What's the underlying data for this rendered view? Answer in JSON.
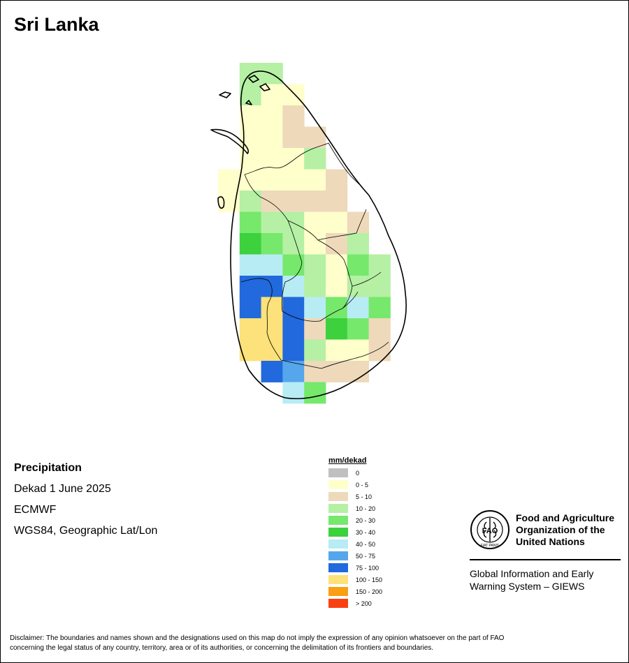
{
  "map": {
    "title": "Sri Lanka",
    "colors": {
      "0": "#c0c0c0",
      "0-5": "#ffffcc",
      "5-10": "#eed9bb",
      "10-20": "#b5f0a4",
      "20-30": "#76e86c",
      "30-40": "#3cd13d",
      "40-50": "#b8ecf4",
      "50-75": "#56a6ec",
      "75-100": "#2169dc",
      "100-150": "#fde17a",
      "150-200": "#f99f11",
      ">200": "#f94010"
    },
    "grid": {
      "columns": [
        "c0",
        "c1",
        "c2",
        "c3",
        "c4",
        "c5",
        "c6",
        "c7"
      ],
      "rows": [
        {
          "cells": [
            "",
            "10-20",
            "10-20",
            "",
            "",
            "",
            "",
            ""
          ]
        },
        {
          "cells": [
            "",
            "10-20",
            "0-5",
            "0-5",
            "",
            "",
            "",
            ""
          ]
        },
        {
          "cells": [
            "",
            "0-5",
            "0-5",
            "5-10",
            "",
            "",
            "",
            ""
          ]
        },
        {
          "cells": [
            "",
            "0-5",
            "0-5",
            "5-10",
            "5-10",
            "",
            "",
            ""
          ]
        },
        {
          "cells": [
            "",
            "0-5",
            "0-5",
            "0-5",
            "10-20",
            "",
            "",
            ""
          ]
        },
        {
          "cells": [
            "0-5",
            "0-5",
            "0-5",
            "0-5",
            "0-5",
            "5-10",
            "",
            ""
          ]
        },
        {
          "cells": [
            "0-5",
            "10-20",
            "5-10",
            "5-10",
            "5-10",
            "5-10",
            "",
            ""
          ]
        },
        {
          "cells": [
            "",
            "20-30",
            "10-20",
            "10-20",
            "0-5",
            "0-5",
            "5-10",
            ""
          ]
        },
        {
          "cells": [
            "",
            "30-40",
            "20-30",
            "10-20",
            "0-5",
            "5-10",
            "10-20",
            ""
          ]
        },
        {
          "cells": [
            "",
            "40-50",
            "40-50",
            "20-30",
            "10-20",
            "0-5",
            "20-30",
            "10-20"
          ]
        },
        {
          "cells": [
            "",
            "75-100",
            "75-100",
            "40-50",
            "10-20",
            "0-5",
            "10-20",
            "10-20"
          ]
        },
        {
          "cells": [
            "",
            "75-100",
            "100-150",
            "75-100",
            "40-50",
            "20-30",
            "40-50",
            "20-30"
          ]
        },
        {
          "cells": [
            "",
            "100-150",
            "100-150",
            "75-100",
            "5-10",
            "30-40",
            "20-30",
            "5-10"
          ]
        },
        {
          "cells": [
            "",
            "100-150",
            "100-150",
            "75-100",
            "10-20",
            "0-5",
            "0-5",
            "5-10"
          ]
        },
        {
          "cells": [
            "",
            "",
            "75-100",
            "50-75",
            "5-10",
            "5-10",
            "5-10",
            ""
          ]
        },
        {
          "cells": [
            "",
            "",
            "",
            "40-50",
            "20-30",
            "",
            "",
            ""
          ]
        }
      ]
    }
  },
  "info": {
    "variable": "Precipitation",
    "period": "Dekad 1 June 2025",
    "source": "ECMWF",
    "projection": "WGS84, Geographic Lat/Lon"
  },
  "legend": {
    "title": "mm/dekad",
    "items": [
      {
        "label": "0",
        "color": "#c0c0c0"
      },
      {
        "label": "0 - 5",
        "color": "#ffffcc"
      },
      {
        "label": "5 - 10",
        "color": "#eed9bb"
      },
      {
        "label": "10 - 20",
        "color": "#b5f0a4"
      },
      {
        "label": "20 - 30",
        "color": "#76e86c"
      },
      {
        "label": "30 - 40",
        "color": "#3cd13d"
      },
      {
        "label": "40 - 50",
        "color": "#b8ecf4"
      },
      {
        "label": "50 - 75",
        "color": "#56a6ec"
      },
      {
        "label": "75 - 100",
        "color": "#2169dc"
      },
      {
        "label": "100 - 150",
        "color": "#fde17a"
      },
      {
        "label": "150 - 200",
        "color": "#f99f11"
      },
      {
        "label": "> 200",
        "color": "#f94010"
      }
    ]
  },
  "logo": {
    "emblem_text": "FAO",
    "emblem_motto": "FIAT PANIS",
    "org_line1": "Food and Agriculture",
    "org_line2": "Organization of the",
    "org_line3": "United Nations",
    "giews_line1": "Global Information and Early",
    "giews_line2": "Warning System – GIEWS"
  },
  "disclaimer": {
    "line1": "Disclaimer: The boundaries and names shown and the designations used on this map do not imply the expression of any opinion whatsoever on the part of FAO",
    "line2": "concerning the legal status of any country, territory, area or of its authorities, or concerning the delimitation of its frontiers and boundaries."
  }
}
